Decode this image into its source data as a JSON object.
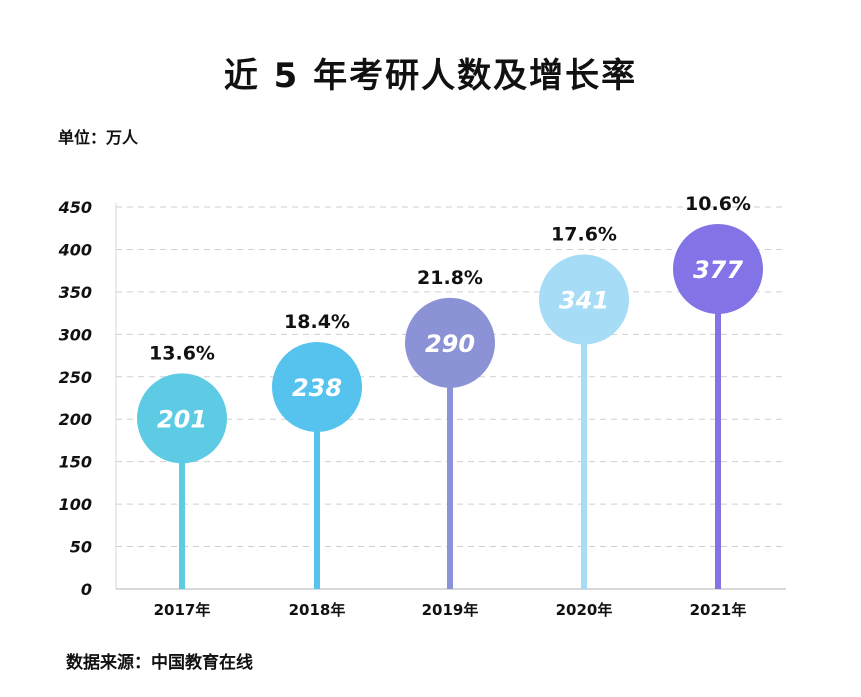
{
  "chart_data": {
    "type": "bar",
    "title": "近 5 年考研人数及增长率",
    "unit_label": "单位：万人",
    "source": "数据来源：中国教育在线",
    "categories": [
      "2017年",
      "2018年",
      "2019年",
      "2020年",
      "2021年"
    ],
    "values": [
      201,
      238,
      290,
      341,
      377
    ],
    "value_labels": [
      "201",
      "238",
      "290",
      "341",
      "377"
    ],
    "growth_rates": [
      "13.6%",
      "18.4%",
      "21.8%",
      "17.6%",
      "10.6%"
    ],
    "colors": [
      "#5ccbe3",
      "#56c3ee",
      "#8b93d6",
      "#a7dcf6",
      "#8273e6"
    ],
    "ylim": [
      0,
      450
    ],
    "yticks": [
      "0",
      "50",
      "100",
      "150",
      "200",
      "250",
      "300",
      "350",
      "400",
      "450"
    ],
    "grid": true
  }
}
